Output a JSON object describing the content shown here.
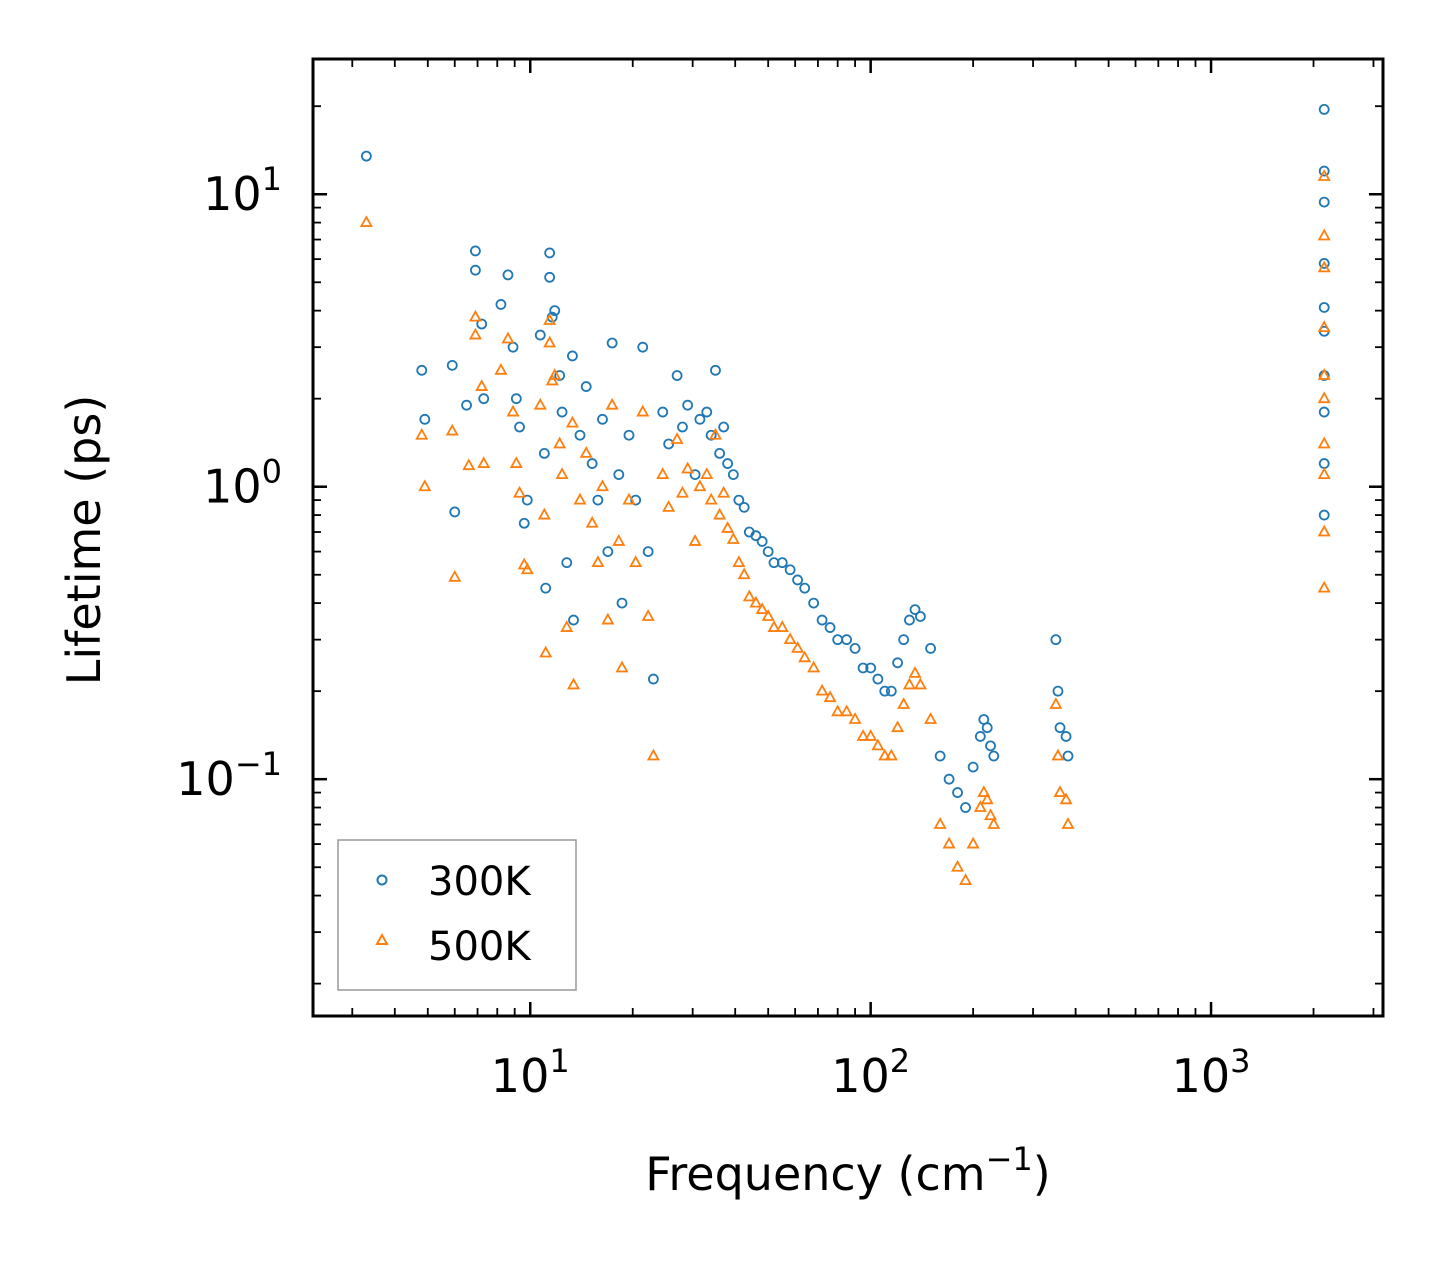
{
  "chart_data": {
    "type": "scatter",
    "xscale": "log",
    "yscale": "log",
    "xlabel": "Frequency (cm",
    "xlabel_sup": "−1",
    "xlabel_suffix": ")",
    "ylabel": "Lifetime (ps)",
    "xlim": [
      2.3,
      3200
    ],
    "ylim": [
      0.0155,
      29
    ],
    "x_ticks": [
      {
        "value": 10,
        "base": "10",
        "exp": "1"
      },
      {
        "value": 100,
        "base": "10",
        "exp": "2"
      },
      {
        "value": 1000,
        "base": "10",
        "exp": "3"
      }
    ],
    "y_ticks": [
      {
        "value": 0.1,
        "base": "10",
        "exp": "−1"
      },
      {
        "value": 1,
        "base": "10",
        "exp": "0"
      },
      {
        "value": 10,
        "base": "10",
        "exp": "1"
      }
    ],
    "legend_position": "lower-left",
    "series": [
      {
        "name": "300K",
        "marker": "circle",
        "color": "#1f77b4",
        "x": [
          3.3,
          4.8,
          4.9,
          5.9,
          6.0,
          6.5,
          6.9,
          6.9,
          7.2,
          7.3,
          8.2,
          8.6,
          8.9,
          9.1,
          9.3,
          9.6,
          9.8,
          10.7,
          11.0,
          11.1,
          11.4,
          11.4,
          11.6,
          11.8,
          12.2,
          12.4,
          12.8,
          13.3,
          13.4,
          14.0,
          14.6,
          15.2,
          15.8,
          16.3,
          16.9,
          17.4,
          18.2,
          18.6,
          19.5,
          20.4,
          21.4,
          22.2,
          23.0,
          24.5,
          25.5,
          27.0,
          28.0,
          29.0,
          30.5,
          31.5,
          33.0,
          34.0,
          35.0,
          36.0,
          37.0,
          38.0,
          39.5,
          41.0,
          42.5,
          44.0,
          46.0,
          48.0,
          50.0,
          52.0,
          55.0,
          58.0,
          61.0,
          64.0,
          68.0,
          72.0,
          76.0,
          80.0,
          85.0,
          90.0,
          95.0,
          100.0,
          105.0,
          110.0,
          115.0,
          120.0,
          125.0,
          130.0,
          135.0,
          140.0,
          150.0,
          160.0,
          170.0,
          180.0,
          190.0,
          200.0,
          210.0,
          215.0,
          220.0,
          225.0,
          230.0,
          350.0,
          355.0,
          360.0,
          375.0,
          380.0,
          2150.0,
          2150.0,
          2150.0,
          2150.0,
          2150.0,
          2150.0,
          2150.0,
          2150.0,
          2150.0,
          2150.0
        ],
        "y": [
          13.5,
          2.5,
          1.7,
          2.6,
          0.82,
          1.9,
          6.4,
          5.5,
          3.6,
          2.0,
          4.2,
          5.3,
          3.0,
          2.0,
          1.6,
          0.75,
          0.9,
          3.3,
          1.3,
          0.45,
          6.3,
          5.2,
          3.8,
          4.0,
          2.4,
          1.8,
          0.55,
          2.8,
          0.35,
          1.5,
          2.2,
          1.2,
          0.9,
          1.7,
          0.6,
          3.1,
          1.1,
          0.4,
          1.5,
          0.9,
          3.0,
          0.6,
          0.22,
          1.8,
          1.4,
          2.4,
          1.6,
          1.9,
          1.1,
          1.7,
          1.8,
          1.5,
          2.5,
          1.3,
          1.6,
          1.2,
          1.1,
          0.9,
          0.85,
          0.7,
          0.68,
          0.65,
          0.6,
          0.55,
          0.55,
          0.52,
          0.48,
          0.45,
          0.4,
          0.35,
          0.33,
          0.3,
          0.3,
          0.28,
          0.24,
          0.24,
          0.22,
          0.2,
          0.2,
          0.25,
          0.3,
          0.35,
          0.38,
          0.36,
          0.28,
          0.12,
          0.1,
          0.09,
          0.08,
          0.11,
          0.14,
          0.16,
          0.15,
          0.13,
          0.12,
          0.3,
          0.2,
          0.15,
          0.14,
          0.12,
          19.5,
          12.0,
          9.4,
          5.8,
          4.1,
          3.4,
          2.4,
          1.8,
          1.2,
          0.8
        ],
        "points": []
      },
      {
        "name": "500K",
        "marker": "triangle",
        "color": "#ff7f0e",
        "x": [
          3.3,
          4.8,
          4.9,
          5.9,
          6.0,
          6.6,
          6.9,
          6.9,
          7.2,
          7.3,
          8.2,
          8.6,
          8.9,
          9.1,
          9.3,
          9.6,
          9.8,
          10.7,
          11.0,
          11.1,
          11.4,
          11.4,
          11.6,
          11.8,
          12.2,
          12.4,
          12.8,
          13.3,
          13.4,
          14.0,
          14.6,
          15.2,
          15.8,
          16.3,
          16.9,
          17.4,
          18.2,
          18.6,
          19.5,
          20.4,
          21.4,
          22.2,
          23.0,
          24.5,
          25.5,
          27.0,
          28.0,
          29.0,
          30.5,
          31.5,
          33.0,
          34.0,
          35.0,
          36.0,
          37.0,
          38.0,
          39.5,
          41.0,
          42.5,
          44.0,
          46.0,
          48.0,
          50.0,
          52.0,
          55.0,
          58.0,
          61.0,
          64.0,
          68.0,
          72.0,
          76.0,
          80.0,
          85.0,
          90.0,
          95.0,
          100.0,
          105.0,
          110.0,
          115.0,
          120.0,
          125.0,
          130.0,
          135.0,
          140.0,
          150.0,
          160.0,
          170.0,
          180.0,
          190.0,
          200.0,
          210.0,
          215.0,
          220.0,
          225.0,
          230.0,
          350.0,
          355.0,
          360.0,
          375.0,
          380.0,
          2150.0,
          2150.0,
          2150.0,
          2150.0,
          2150.0,
          2150.0,
          2150.0,
          2150.0,
          2150.0,
          2150.0
        ],
        "y": [
          8.0,
          1.5,
          1.0,
          1.55,
          0.49,
          1.18,
          3.8,
          3.3,
          2.2,
          1.2,
          2.5,
          3.2,
          1.8,
          1.2,
          0.95,
          0.54,
          0.52,
          1.9,
          0.8,
          0.27,
          3.7,
          3.1,
          2.3,
          2.4,
          1.4,
          1.1,
          0.33,
          1.65,
          0.21,
          0.9,
          1.3,
          0.75,
          0.55,
          1.0,
          0.35,
          1.9,
          0.65,
          0.24,
          0.9,
          0.55,
          1.8,
          0.36,
          0.12,
          1.1,
          0.85,
          1.45,
          0.95,
          1.15,
          0.65,
          1.0,
          1.1,
          0.9,
          1.5,
          0.8,
          0.95,
          0.72,
          0.66,
          0.55,
          0.5,
          0.42,
          0.4,
          0.38,
          0.36,
          0.33,
          0.33,
          0.3,
          0.28,
          0.26,
          0.24,
          0.2,
          0.19,
          0.17,
          0.17,
          0.16,
          0.14,
          0.14,
          0.13,
          0.12,
          0.12,
          0.15,
          0.18,
          0.21,
          0.23,
          0.21,
          0.16,
          0.07,
          0.06,
          0.05,
          0.045,
          0.06,
          0.08,
          0.09,
          0.085,
          0.075,
          0.07,
          0.18,
          0.12,
          0.09,
          0.085,
          0.07,
          11.5,
          7.2,
          5.6,
          3.5,
          2.4,
          2.0,
          1.4,
          1.1,
          0.7,
          0.45
        ],
        "points": []
      }
    ]
  }
}
